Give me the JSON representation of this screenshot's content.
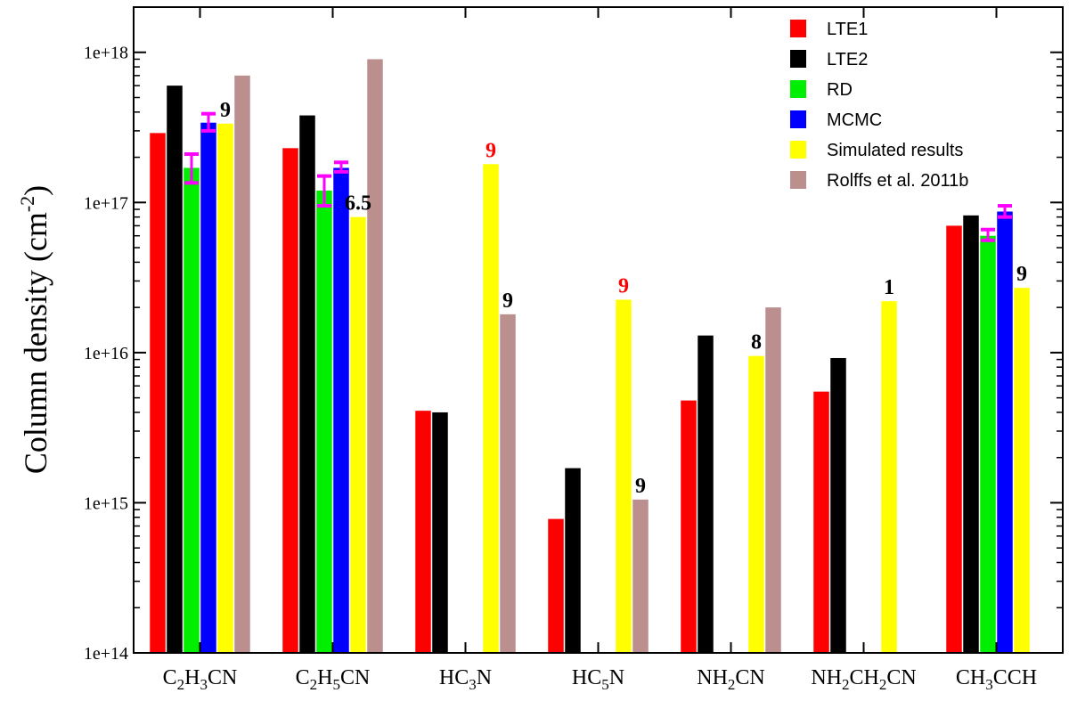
{
  "chart_data": {
    "type": "bar",
    "ylabel": "Column density (cm",
    "ylabel_sup": "-2",
    "ylabel_close": ")",
    "yscale": "log",
    "ylim": [
      100000000000000.0,
      2e+18
    ],
    "yticks": [
      {
        "value": 100000000000000.0,
        "label": "1e+14"
      },
      {
        "value": 1000000000000000.0,
        "label": "1e+15"
      },
      {
        "value": 1e+16,
        "label": "1e+16"
      },
      {
        "value": 1e+17,
        "label": "1e+17"
      },
      {
        "value": 1e+18,
        "label": "1e+18"
      }
    ],
    "categories": [
      {
        "parts": [
          [
            "C",
            ""
          ],
          [
            "2",
            "sub"
          ],
          [
            "H",
            ""
          ],
          [
            "3",
            "sub"
          ],
          [
            "CN",
            ""
          ]
        ]
      },
      {
        "parts": [
          [
            "C",
            ""
          ],
          [
            "2",
            "sub"
          ],
          [
            "H",
            ""
          ],
          [
            "5",
            "sub"
          ],
          [
            "CN",
            ""
          ]
        ]
      },
      {
        "parts": [
          [
            "HC",
            ""
          ],
          [
            "3",
            "sub"
          ],
          [
            "N",
            ""
          ]
        ]
      },
      {
        "parts": [
          [
            "HC",
            ""
          ],
          [
            "5",
            "sub"
          ],
          [
            "N",
            ""
          ]
        ]
      },
      {
        "parts": [
          [
            "NH",
            ""
          ],
          [
            "2",
            "sub"
          ],
          [
            "CN",
            ""
          ]
        ]
      },
      {
        "parts": [
          [
            "NH",
            ""
          ],
          [
            "2",
            "sub"
          ],
          [
            "CH",
            ""
          ],
          [
            "2",
            "sub"
          ],
          [
            "CN",
            ""
          ]
        ]
      },
      {
        "parts": [
          [
            "CH",
            ""
          ],
          [
            "3",
            "sub"
          ],
          [
            "CCH",
            ""
          ]
        ]
      }
    ],
    "series": [
      {
        "name": "LTE1",
        "color": "#ff0000",
        "values": [
          2.9e+17,
          2.3e+17,
          4100000000000000.0,
          780000000000000.0,
          4800000000000000.0,
          5500000000000000.0,
          7e+16
        ]
      },
      {
        "name": "LTE2",
        "color": "#000000",
        "values": [
          6e+17,
          3.8e+17,
          4000000000000000.0,
          1700000000000000.0,
          1.3e+16,
          9200000000000000.0,
          8.2e+16
        ]
      },
      {
        "name": "RD",
        "color": "#00ee00",
        "values": [
          1.7e+17,
          1.2e+17,
          null,
          null,
          null,
          null,
          6e+16
        ],
        "errors": [
          [
            1.35e+17,
            2.1e+17
          ],
          [
            9.5e+16,
            1.5e+17
          ],
          null,
          null,
          null,
          null,
          [
            5.6e+16,
            6.6e+16
          ]
        ]
      },
      {
        "name": "MCMC",
        "color": "#0000ff",
        "values": [
          3.4e+17,
          1.7e+17,
          null,
          null,
          null,
          null,
          8.7e+16
        ],
        "errors": [
          [
            3e+17,
            3.9e+17
          ],
          [
            1.6e+17,
            1.85e+17
          ],
          null,
          null,
          null,
          null,
          [
            8e+16,
            9.5e+16
          ]
        ]
      },
      {
        "name": "Simulated results",
        "color": "#ffff00",
        "values": [
          3.35e+17,
          8e+16,
          1.8e+17,
          2.25e+16,
          9500000000000000.0,
          2.2e+16,
          2.7e+16
        ]
      },
      {
        "name": "Rolffs et al. 2011b",
        "color": "#bc8f8f",
        "values": [
          7e+17,
          9e+17,
          1.8e+16,
          1050000000000000.0,
          2e+16,
          null,
          null
        ]
      }
    ],
    "error_bar_color": "#ff00ff",
    "annotations": [
      {
        "category": 0,
        "series": 4,
        "text": "9",
        "color": "#000000"
      },
      {
        "category": 1,
        "series": 4,
        "text": "6.5",
        "color": "#000000"
      },
      {
        "category": 2,
        "series": 4,
        "text": "9",
        "color": "#ff0000"
      },
      {
        "category": 2,
        "series": 5,
        "text": "9",
        "color": "#000000"
      },
      {
        "category": 3,
        "series": 4,
        "text": "9",
        "color": "#ff0000"
      },
      {
        "category": 3,
        "series": 5,
        "text": "9",
        "color": "#000000"
      },
      {
        "category": 4,
        "series": 4,
        "text": "8",
        "color": "#000000"
      },
      {
        "category": 5,
        "series": 4,
        "text": "1",
        "color": "#000000"
      },
      {
        "category": 6,
        "series": 4,
        "text": "9",
        "color": "#000000"
      }
    ],
    "legend_position": "top-right",
    "grid": false
  }
}
